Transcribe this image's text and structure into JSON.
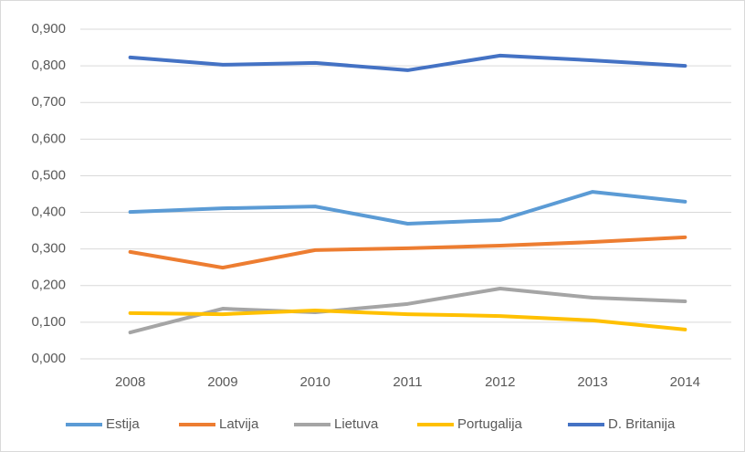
{
  "chart_data": {
    "type": "line",
    "categories": [
      "2008",
      "2009",
      "2010",
      "2011",
      "2012",
      "2013",
      "2014"
    ],
    "series": [
      {
        "name": "Estija",
        "color": "#5b9bd5",
        "values": [
          0.401,
          0.411,
          0.416,
          0.369,
          0.379,
          0.456,
          0.429
        ]
      },
      {
        "name": "Latvija",
        "color": "#ed7d31",
        "values": [
          0.292,
          0.249,
          0.297,
          0.302,
          0.309,
          0.319,
          0.332
        ]
      },
      {
        "name": "Lietuva",
        "color": "#a5a5a5",
        "values": [
          0.072,
          0.137,
          0.127,
          0.15,
          0.192,
          0.167,
          0.157
        ]
      },
      {
        "name": "Portugalija",
        "color": "#ffc000",
        "values": [
          0.125,
          0.122,
          0.132,
          0.122,
          0.117,
          0.105,
          0.08
        ]
      },
      {
        "name": "D. Britanija",
        "color": "#4472c4",
        "values": [
          0.823,
          0.803,
          0.808,
          0.788,
          0.828,
          0.815,
          0.8
        ]
      }
    ],
    "ylim": [
      0,
      0.9
    ],
    "yticks": [
      {
        "value": 0,
        "label": "0,000"
      },
      {
        "value": 0.1,
        "label": "0,100"
      },
      {
        "value": 0.2,
        "label": "0,200"
      },
      {
        "value": 0.3,
        "label": "0,300"
      },
      {
        "value": 0.4,
        "label": "0,400"
      },
      {
        "value": 0.5,
        "label": "0,500"
      },
      {
        "value": 0.6,
        "label": "0,600"
      },
      {
        "value": 0.7,
        "label": "0,700"
      },
      {
        "value": 0.8,
        "label": "0,800"
      },
      {
        "value": 0.9,
        "label": "0,900"
      }
    ],
    "grid": true,
    "legend": "bottom"
  }
}
